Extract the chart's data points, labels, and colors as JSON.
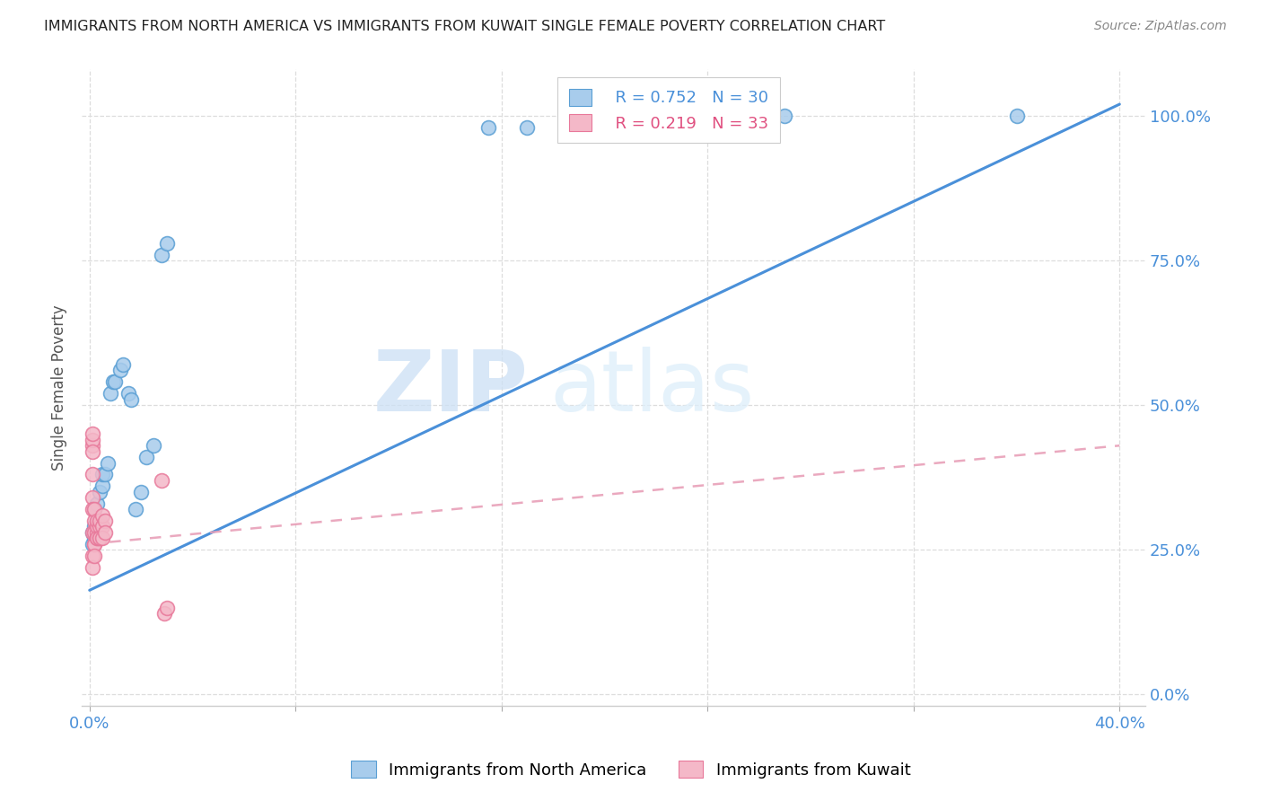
{
  "title": "IMMIGRANTS FROM NORTH AMERICA VS IMMIGRANTS FROM KUWAIT SINGLE FEMALE POVERTY CORRELATION CHART",
  "source": "Source: ZipAtlas.com",
  "ylabel": "Single Female Poverty",
  "yticks": [
    "100.0%",
    "75.0%",
    "50.0%",
    "25.0%",
    "0.0%"
  ],
  "ytick_vals": [
    1.0,
    0.75,
    0.5,
    0.25,
    0.0
  ],
  "legend_blue_r": "R = 0.752",
  "legend_blue_n": "N = 30",
  "legend_pink_r": "R = 0.219",
  "legend_pink_n": "N = 33",
  "blue_color": "#a8ccec",
  "pink_color": "#f4b8c8",
  "blue_scatter_edge": "#5a9fd4",
  "pink_scatter_edge": "#e8789a",
  "blue_line_color": "#4a90d9",
  "pink_line_color": "#e8a0b8",
  "watermark_zip": "ZIP",
  "watermark_atlas": "atlas",
  "blue_scatter_x": [
    0.001,
    0.001,
    0.002,
    0.002,
    0.002,
    0.003,
    0.003,
    0.004,
    0.004,
    0.005,
    0.005,
    0.006,
    0.007,
    0.008,
    0.009,
    0.01,
    0.012,
    0.013,
    0.015,
    0.016,
    0.018,
    0.02,
    0.022,
    0.025,
    0.028,
    0.03,
    0.155,
    0.17,
    0.27,
    0.36
  ],
  "blue_scatter_y": [
    0.26,
    0.28,
    0.27,
    0.29,
    0.32,
    0.3,
    0.33,
    0.27,
    0.35,
    0.36,
    0.38,
    0.38,
    0.4,
    0.52,
    0.54,
    0.54,
    0.56,
    0.57,
    0.52,
    0.51,
    0.32,
    0.35,
    0.41,
    0.43,
    0.76,
    0.78,
    0.98,
    0.98,
    1.0,
    1.0
  ],
  "pink_scatter_x": [
    0.001,
    0.001,
    0.001,
    0.001,
    0.001,
    0.001,
    0.001,
    0.001,
    0.001,
    0.001,
    0.002,
    0.002,
    0.002,
    0.002,
    0.002,
    0.002,
    0.003,
    0.003,
    0.003,
    0.003,
    0.003,
    0.004,
    0.004,
    0.004,
    0.004,
    0.005,
    0.005,
    0.005,
    0.006,
    0.006,
    0.028,
    0.029,
    0.03
  ],
  "pink_scatter_y": [
    0.43,
    0.44,
    0.45,
    0.42,
    0.38,
    0.34,
    0.32,
    0.28,
    0.24,
    0.22,
    0.26,
    0.28,
    0.3,
    0.32,
    0.26,
    0.24,
    0.27,
    0.28,
    0.29,
    0.3,
    0.27,
    0.27,
    0.29,
    0.3,
    0.27,
    0.29,
    0.31,
    0.27,
    0.3,
    0.28,
    0.37,
    0.14,
    0.15
  ],
  "blue_line_x": [
    0.0,
    0.4
  ],
  "blue_line_y": [
    0.18,
    1.02
  ],
  "pink_line_x": [
    0.0,
    0.4
  ],
  "pink_line_y": [
    0.26,
    0.43
  ],
  "xlim": [
    -0.003,
    0.41
  ],
  "ylim": [
    -0.02,
    1.08
  ],
  "xtick_positions": [
    0.0,
    0.08,
    0.16,
    0.24,
    0.32,
    0.4
  ],
  "grid_color": "#dddddd",
  "background_color": "#ffffff",
  "spine_color": "#cccccc"
}
